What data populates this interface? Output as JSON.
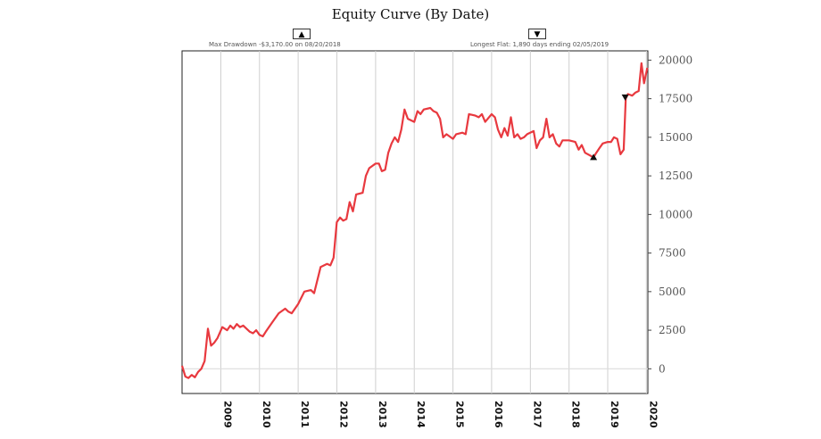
{
  "chart_data": {
    "type": "line",
    "title": "Equity Curve (By Date)",
    "xlabel": "",
    "ylabel": "",
    "x_type": "date",
    "xlim": [
      "2008-01-01",
      "2020-01-15"
    ],
    "ylim": [
      -1600,
      20600
    ],
    "y_ticks": [
      0,
      2500,
      5000,
      7500,
      10000,
      12500,
      15000,
      17500,
      20000
    ],
    "x_ticks": [
      "2009",
      "2010",
      "2011",
      "2012",
      "2013",
      "2014",
      "2015",
      "2016",
      "2017",
      "2018",
      "2019",
      "2020"
    ],
    "grid": true,
    "line_color": "#e8393f",
    "zero_line_color": "#dddddd",
    "series": [
      {
        "points": [
          [
            "2008-01-01",
            200
          ],
          [
            "2008-02-01",
            -500
          ],
          [
            "2008-03-01",
            -600
          ],
          [
            "2008-04-01",
            -400
          ],
          [
            "2008-05-01",
            -550
          ],
          [
            "2008-06-01",
            -200
          ],
          [
            "2008-07-01",
            0
          ],
          [
            "2008-08-01",
            500
          ],
          [
            "2008-09-01",
            2600
          ],
          [
            "2008-10-01",
            1500
          ],
          [
            "2008-11-01",
            1700
          ],
          [
            "2008-12-01",
            2000
          ],
          [
            "2009-01-15",
            2700
          ],
          [
            "2009-03-01",
            2500
          ],
          [
            "2009-04-01",
            2800
          ],
          [
            "2009-05-01",
            2600
          ],
          [
            "2009-06-01",
            2900
          ],
          [
            "2009-07-01",
            2700
          ],
          [
            "2009-08-01",
            2800
          ],
          [
            "2009-09-01",
            2600
          ],
          [
            "2009-10-01",
            2400
          ],
          [
            "2009-11-01",
            2300
          ],
          [
            "2009-12-01",
            2500
          ],
          [
            "2010-01-01",
            2200
          ],
          [
            "2010-02-01",
            2100
          ],
          [
            "2010-03-01",
            2400
          ],
          [
            "2010-05-01",
            3000
          ],
          [
            "2010-07-01",
            3600
          ],
          [
            "2010-09-01",
            3900
          ],
          [
            "2010-10-01",
            3700
          ],
          [
            "2010-11-01",
            3600
          ],
          [
            "2011-01-01",
            4200
          ],
          [
            "2011-03-01",
            5000
          ],
          [
            "2011-05-01",
            5100
          ],
          [
            "2011-06-01",
            4900
          ],
          [
            "2011-08-01",
            6600
          ],
          [
            "2011-10-01",
            6800
          ],
          [
            "2011-11-01",
            6700
          ],
          [
            "2011-12-01",
            7200
          ],
          [
            "2012-01-01",
            9500
          ],
          [
            "2012-02-01",
            9800
          ],
          [
            "2012-03-01",
            9600
          ],
          [
            "2012-04-01",
            9700
          ],
          [
            "2012-05-01",
            10800
          ],
          [
            "2012-06-01",
            10200
          ],
          [
            "2012-07-01",
            11300
          ],
          [
            "2012-09-01",
            11400
          ],
          [
            "2012-10-01",
            12500
          ],
          [
            "2012-11-01",
            13000
          ],
          [
            "2013-01-01",
            13300
          ],
          [
            "2013-02-01",
            13300
          ],
          [
            "2013-03-01",
            12800
          ],
          [
            "2013-04-01",
            12900
          ],
          [
            "2013-05-01",
            14000
          ],
          [
            "2013-06-01",
            14600
          ],
          [
            "2013-07-01",
            15000
          ],
          [
            "2013-08-01",
            14700
          ],
          [
            "2013-09-01",
            15500
          ],
          [
            "2013-10-01",
            16800
          ],
          [
            "2013-11-01",
            16200
          ],
          [
            "2014-01-01",
            16000
          ],
          [
            "2014-02-01",
            16700
          ],
          [
            "2014-03-01",
            16500
          ],
          [
            "2014-04-01",
            16800
          ],
          [
            "2014-06-01",
            16900
          ],
          [
            "2014-07-01",
            16700
          ],
          [
            "2014-08-01",
            16600
          ],
          [
            "2014-09-01",
            16200
          ],
          [
            "2014-10-01",
            15000
          ],
          [
            "2014-11-01",
            15200
          ],
          [
            "2015-01-01",
            14900
          ],
          [
            "2015-02-01",
            15200
          ],
          [
            "2015-04-01",
            15300
          ],
          [
            "2015-05-01",
            15200
          ],
          [
            "2015-06-01",
            16500
          ],
          [
            "2015-08-01",
            16400
          ],
          [
            "2015-09-01",
            16300
          ],
          [
            "2015-10-01",
            16500
          ],
          [
            "2015-11-01",
            16000
          ],
          [
            "2016-01-01",
            16500
          ],
          [
            "2016-02-01",
            16300
          ],
          [
            "2016-03-01",
            15500
          ],
          [
            "2016-04-01",
            15000
          ],
          [
            "2016-05-01",
            15600
          ],
          [
            "2016-06-01",
            15100
          ],
          [
            "2016-07-01",
            16300
          ],
          [
            "2016-08-01",
            15000
          ],
          [
            "2016-09-01",
            15200
          ],
          [
            "2016-10-01",
            14900
          ],
          [
            "2016-11-01",
            15000
          ],
          [
            "2016-12-01",
            15200
          ],
          [
            "2017-02-01",
            15400
          ],
          [
            "2017-03-01",
            14300
          ],
          [
            "2017-04-01",
            14800
          ],
          [
            "2017-05-01",
            15000
          ],
          [
            "2017-06-01",
            16200
          ],
          [
            "2017-07-01",
            15000
          ],
          [
            "2017-08-01",
            15200
          ],
          [
            "2017-09-01",
            14600
          ],
          [
            "2017-10-01",
            14400
          ],
          [
            "2017-11-01",
            14800
          ],
          [
            "2018-01-01",
            14800
          ],
          [
            "2018-03-01",
            14700
          ],
          [
            "2018-04-01",
            14200
          ],
          [
            "2018-05-01",
            14500
          ],
          [
            "2018-06-01",
            14000
          ],
          [
            "2018-08-20",
            13700
          ],
          [
            "2018-09-15",
            14000
          ],
          [
            "2018-10-15",
            14300
          ],
          [
            "2018-11-15",
            14600
          ],
          [
            "2019-01-01",
            14700
          ],
          [
            "2019-02-01",
            14700
          ],
          [
            "2019-03-01",
            15000
          ],
          [
            "2019-04-01",
            14900
          ],
          [
            "2019-05-01",
            13900
          ],
          [
            "2019-06-01",
            14200
          ],
          [
            "2019-06-20",
            17500
          ],
          [
            "2019-07-10",
            17800
          ],
          [
            "2019-08-20",
            17700
          ],
          [
            "2019-09-20",
            17900
          ],
          [
            "2019-10-20",
            18000
          ],
          [
            "2019-11-15",
            19800
          ],
          [
            "2019-12-10",
            18500
          ],
          [
            "2020-01-10",
            19500
          ]
        ]
      }
    ],
    "markers": [
      {
        "date": "2018-08-20",
        "value": 13700,
        "symbol": "▲"
      },
      {
        "date": "2019-06-15",
        "value": 17600,
        "symbol": "▼"
      }
    ]
  },
  "controls": {
    "drawdown_toggle": "▲",
    "flat_toggle": "▼"
  },
  "annotations": {
    "drawdown": "Max Drawdown -$3,170.00 on 08/20/2018",
    "flat": "Longest Flat: 1,890 days ending 02/05/2019"
  }
}
